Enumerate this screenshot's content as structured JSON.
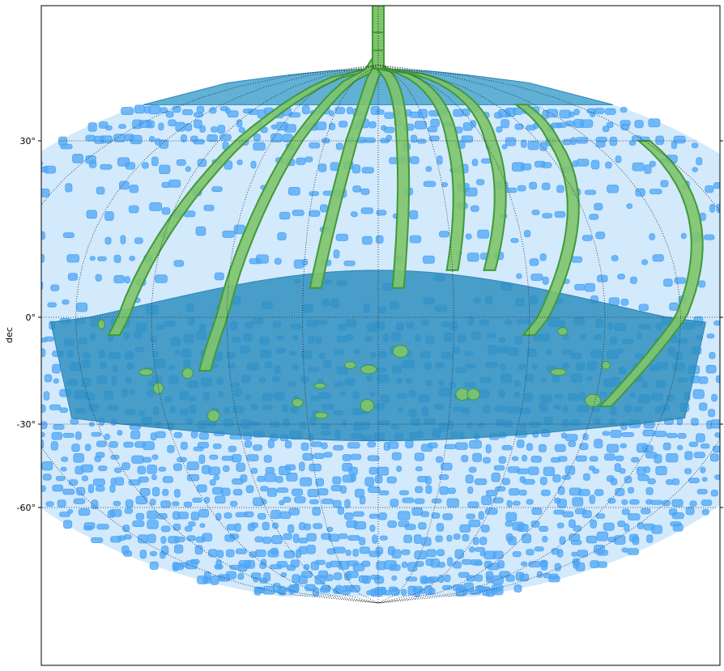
{
  "chart_data": {
    "type": "scatter",
    "projection": "mollweide-sky",
    "title": "",
    "xlabel": "",
    "ylabel": "dec",
    "ylim": [
      -90,
      90
    ],
    "y_ticks": [
      {
        "value": 30,
        "label": "30°"
      },
      {
        "value": 0,
        "label": "0°"
      },
      {
        "value": -30,
        "label": "-30°"
      },
      {
        "value": -60,
        "label": "-60°"
      }
    ],
    "grid": true,
    "legend": "none",
    "series": [
      {
        "color": "#4da6f5",
        "fill": "#9ecff8",
        "description_free": true,
        "regions": [
          {
            "ra": [
              -180,
              180
            ],
            "dec": [
              -88,
              40
            ]
          }
        ]
      },
      {
        "color": "#3f9a3a",
        "fill": "#7fc46b",
        "regions": [
          {
            "ra0": -40,
            "dec0": 78,
            "ra1": -105,
            "dec1": -5
          },
          {
            "ra0": -18,
            "dec0": 82,
            "ra1": -70,
            "dec1": -15
          },
          {
            "ra0": 5,
            "dec0": 80,
            "ra1": -25,
            "dec1": 5
          },
          {
            "ra0": 20,
            "dec0": 60,
            "ra1": 8,
            "dec1": 5
          },
          {
            "ra0": 55,
            "dec0": 55,
            "ra1": 30,
            "dec1": 8
          },
          {
            "ra0": 80,
            "dec0": 50,
            "ra1": 45,
            "dec1": 8
          },
          {
            "ra0": 110,
            "dec0": 40,
            "ra1": 60,
            "dec1": -5
          },
          {
            "ra0": 150,
            "dec0": 30,
            "ra1": 95,
            "dec1": -25
          },
          {
            "ra0": -170,
            "dec0": 10,
            "ra1": -140,
            "dec1": -5
          },
          {
            "ra0": 175,
            "dec0": 5,
            "ra1": 150,
            "dec1": -20
          }
        ]
      }
    ]
  }
}
